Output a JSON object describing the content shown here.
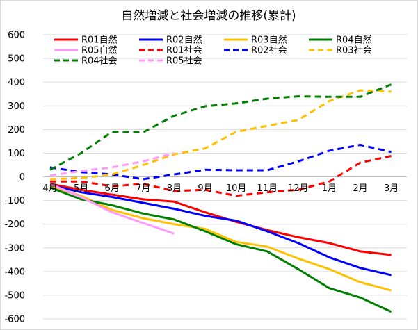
{
  "chart_data": {
    "type": "line",
    "title": "自然増減と社会増減の推移(累計)",
    "xlabel": "",
    "ylabel": "",
    "categories": [
      "4月",
      "5月",
      "6月",
      "7月",
      "8月",
      "9月",
      "10月",
      "11月",
      "12月",
      "1月",
      "2月",
      "3月"
    ],
    "ylim": [
      -600,
      600
    ],
    "yticks": [
      600,
      500,
      400,
      300,
      200,
      100,
      0,
      -100,
      -200,
      -300,
      -400,
      -500,
      -600
    ],
    "grid": true,
    "legend_position": "top",
    "series": [
      {
        "name": "R01自然",
        "color": "#ff0000",
        "dash": "solid",
        "values": [
          -30,
          -55,
          -75,
          -95,
          -105,
          -150,
          -190,
          -225,
          -255,
          -280,
          -315,
          -330
        ]
      },
      {
        "name": "R02自然",
        "color": "#0000ff",
        "dash": "solid",
        "values": [
          -35,
          -65,
          -85,
          -110,
          -135,
          -165,
          -185,
          -230,
          -280,
          -340,
          -385,
          -415
        ]
      },
      {
        "name": "R03自然",
        "color": "#ffc000",
        "dash": "solid",
        "values": [
          -40,
          -80,
          -140,
          -175,
          -200,
          -220,
          -275,
          -295,
          -345,
          -390,
          -445,
          -480
        ]
      },
      {
        "name": "R04自然",
        "color": "#008000",
        "dash": "solid",
        "values": [
          -45,
          -95,
          -120,
          -155,
          -180,
          -230,
          -285,
          -315,
          -390,
          -470,
          -510,
          -570
        ]
      },
      {
        "name": "R05自然",
        "color": "#ff99ff",
        "dash": "solid",
        "values": [
          -30,
          -85,
          -150,
          -195,
          -240,
          null,
          null,
          null,
          null,
          null,
          null,
          null
        ]
      },
      {
        "name": "R01社会",
        "color": "#ff0000",
        "dash": "dashed",
        "values": [
          -20,
          -20,
          -40,
          -30,
          -60,
          -55,
          -80,
          -65,
          -55,
          -20,
          60,
          88
        ]
      },
      {
        "name": "R02社会",
        "color": "#0000ff",
        "dash": "dashed",
        "values": [
          40,
          20,
          10,
          -10,
          10,
          30,
          28,
          28,
          65,
          110,
          135,
          105
        ]
      },
      {
        "name": "R03社会",
        "color": "#ffc000",
        "dash": "dashed",
        "values": [
          -10,
          -5,
          10,
          50,
          95,
          120,
          190,
          215,
          240,
          320,
          365,
          360
        ]
      },
      {
        "name": "R04社会",
        "color": "#008000",
        "dash": "dashed",
        "values": [
          30,
          100,
          190,
          188,
          258,
          298,
          310,
          330,
          340,
          338,
          338,
          390
        ]
      },
      {
        "name": "R05社会",
        "color": "#ff99ff",
        "dash": "dashed",
        "values": [
          5,
          25,
          40,
          65,
          100,
          null,
          null,
          null,
          null,
          null,
          null,
          null
        ]
      }
    ]
  }
}
